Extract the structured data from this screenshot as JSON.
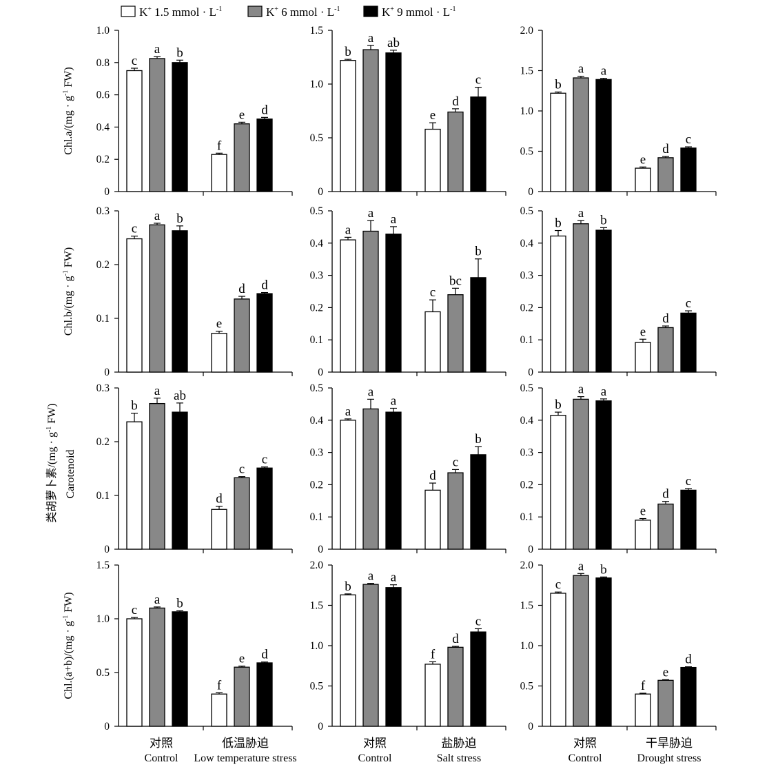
{
  "legend": {
    "entries": [
      {
        "prefix": "K",
        "sup": "+",
        "text": " 1.5 mmol · L",
        "sup2": "-1",
        "color": "#ffffff"
      },
      {
        "prefix": "K",
        "sup": "+",
        "text": " 6 mmol · L",
        "sup2": "-1",
        "color": "#888888"
      },
      {
        "prefix": "K",
        "sup": "+",
        "text": " 9 mmol · L",
        "sup2": "-1",
        "color": "#000000"
      }
    ]
  },
  "row_ylabels": [
    {
      "line1": "Chl.a/(mg · g",
      "sup": "-1",
      "line1_end": " FW)",
      "line2": ""
    },
    {
      "line1": "Chl.b/(mg · g",
      "sup": "-1",
      "line1_end": " FW)",
      "line2": ""
    },
    {
      "line1": "类胡萝卜素/(mg · g",
      "sup": "-1",
      "line1_end": " FW)",
      "line2": "Carotenoid"
    },
    {
      "line1": "Chl.(a+b)/(mg · g",
      "sup": "-1",
      "line1_end": " FW)",
      "line2": ""
    }
  ],
  "col_xlabels": [
    [
      {
        "cn": "对照",
        "en": "Control"
      },
      {
        "cn": "低温胁迫",
        "en": "Low temperature stress"
      }
    ],
    [
      {
        "cn": "对照",
        "en": "Control"
      },
      {
        "cn": "盐胁迫",
        "en": "Salt stress"
      }
    ],
    [
      {
        "cn": "对照",
        "en": "Control"
      },
      {
        "cn": "干旱胁迫",
        "en": "Drought stress"
      }
    ]
  ],
  "series_colors": [
    "#ffffff",
    "#888888",
    "#000000"
  ],
  "chart_data": [
    {
      "type": "bar",
      "row": 0,
      "col": 0,
      "ylim": [
        0,
        1.0
      ],
      "yticks": [
        "0",
        "0.2",
        "0.4",
        "0.6",
        "0.8",
        "1.0"
      ],
      "groups": [
        {
          "values": [
            0.75,
            0.825,
            0.8
          ],
          "errors": [
            0.015,
            0.012,
            0.015
          ],
          "letters": [
            "c",
            "a",
            "b"
          ]
        },
        {
          "values": [
            0.23,
            0.42,
            0.45
          ],
          "errors": [
            0.008,
            0.01,
            0.01
          ],
          "letters": [
            "f",
            "e",
            "d"
          ]
        }
      ]
    },
    {
      "type": "bar",
      "row": 0,
      "col": 1,
      "ylim": [
        0,
        1.5
      ],
      "yticks": [
        "0",
        "0.5",
        "1.0",
        "1.5"
      ],
      "groups": [
        {
          "values": [
            1.22,
            1.32,
            1.29
          ],
          "errors": [
            0.01,
            0.04,
            0.025
          ],
          "letters": [
            "b",
            "a",
            "ab"
          ]
        },
        {
          "values": [
            0.58,
            0.74,
            0.88
          ],
          "errors": [
            0.06,
            0.03,
            0.09
          ],
          "letters": [
            "e",
            "d",
            "c"
          ]
        }
      ]
    },
    {
      "type": "bar",
      "row": 0,
      "col": 2,
      "ylim": [
        0,
        2.0
      ],
      "yticks": [
        "0",
        "0.5",
        "1.0",
        "1.5",
        "2.0"
      ],
      "groups": [
        {
          "values": [
            1.22,
            1.41,
            1.39
          ],
          "errors": [
            0.015,
            0.02,
            0.015
          ],
          "letters": [
            "b",
            "a",
            "a"
          ]
        },
        {
          "values": [
            0.29,
            0.42,
            0.54
          ],
          "errors": [
            0.015,
            0.015,
            0.015
          ],
          "letters": [
            "e",
            "d",
            "c"
          ]
        }
      ]
    },
    {
      "type": "bar",
      "row": 1,
      "col": 0,
      "ylim": [
        0,
        0.3
      ],
      "yticks": [
        "0",
        "0.1",
        "0.2",
        "0.3"
      ],
      "groups": [
        {
          "values": [
            0.248,
            0.274,
            0.263
          ],
          "errors": [
            0.005,
            0.003,
            0.009
          ],
          "letters": [
            "c",
            "a",
            "b"
          ]
        },
        {
          "values": [
            0.072,
            0.136,
            0.146
          ],
          "errors": [
            0.004,
            0.005,
            0.002
          ],
          "letters": [
            "e",
            "d",
            "d"
          ]
        }
      ]
    },
    {
      "type": "bar",
      "row": 1,
      "col": 1,
      "ylim": [
        0,
        0.5
      ],
      "yticks": [
        "0",
        "0.1",
        "0.2",
        "0.3",
        "0.4",
        "0.5"
      ],
      "groups": [
        {
          "values": [
            0.41,
            0.437,
            0.428
          ],
          "errors": [
            0.008,
            0.033,
            0.023
          ],
          "letters": [
            "a",
            "a",
            "a"
          ]
        },
        {
          "values": [
            0.187,
            0.24,
            0.293
          ],
          "errors": [
            0.037,
            0.02,
            0.058
          ],
          "letters": [
            "c",
            "bc",
            "b"
          ]
        }
      ]
    },
    {
      "type": "bar",
      "row": 1,
      "col": 2,
      "ylim": [
        0,
        0.5
      ],
      "yticks": [
        "0",
        "0.1",
        "0.2",
        "0.3",
        "0.4",
        "0.5"
      ],
      "groups": [
        {
          "values": [
            0.422,
            0.46,
            0.44
          ],
          "errors": [
            0.017,
            0.01,
            0.008
          ],
          "letters": [
            "b",
            "a",
            "b"
          ]
        },
        {
          "values": [
            0.092,
            0.138,
            0.183
          ],
          "errors": [
            0.01,
            0.005,
            0.007
          ],
          "letters": [
            "e",
            "d",
            "c"
          ]
        }
      ]
    },
    {
      "type": "bar",
      "row": 2,
      "col": 0,
      "ylim": [
        0,
        0.3
      ],
      "yticks": [
        "0",
        "0.1",
        "0.2",
        "0.3"
      ],
      "groups": [
        {
          "values": [
            0.237,
            0.271,
            0.255
          ],
          "errors": [
            0.016,
            0.01,
            0.017
          ],
          "letters": [
            "b",
            "a",
            "ab"
          ]
        },
        {
          "values": [
            0.074,
            0.133,
            0.151
          ],
          "errors": [
            0.006,
            0.002,
            0.002
          ],
          "letters": [
            "d",
            "c",
            "c"
          ]
        }
      ]
    },
    {
      "type": "bar",
      "row": 2,
      "col": 1,
      "ylim": [
        0,
        0.5
      ],
      "yticks": [
        "0",
        "0.1",
        "0.2",
        "0.3",
        "0.4",
        "0.5"
      ],
      "groups": [
        {
          "values": [
            0.4,
            0.435,
            0.425
          ],
          "errors": [
            0.004,
            0.03,
            0.012
          ],
          "letters": [
            "a",
            "a",
            "a"
          ]
        },
        {
          "values": [
            0.183,
            0.237,
            0.293
          ],
          "errors": [
            0.022,
            0.01,
            0.025
          ],
          "letters": [
            "d",
            "c",
            "b"
          ]
        }
      ]
    },
    {
      "type": "bar",
      "row": 2,
      "col": 2,
      "ylim": [
        0,
        0.5
      ],
      "yticks": [
        "0",
        "0.1",
        "0.2",
        "0.3",
        "0.4",
        "0.5"
      ],
      "groups": [
        {
          "values": [
            0.415,
            0.465,
            0.46
          ],
          "errors": [
            0.01,
            0.008,
            0.006
          ],
          "letters": [
            "b",
            "a",
            "a"
          ]
        },
        {
          "values": [
            0.09,
            0.14,
            0.183
          ],
          "errors": [
            0.005,
            0.008,
            0.005
          ],
          "letters": [
            "e",
            "d",
            "c"
          ]
        }
      ]
    },
    {
      "type": "bar",
      "row": 3,
      "col": 0,
      "ylim": [
        0,
        1.5
      ],
      "yticks": [
        "0",
        "0.5",
        "1.0",
        "1.5"
      ],
      "groups": [
        {
          "values": [
            1.0,
            1.1,
            1.065
          ],
          "errors": [
            0.012,
            0.01,
            0.01
          ],
          "letters": [
            "c",
            "a",
            "b"
          ]
        },
        {
          "values": [
            0.3,
            0.55,
            0.59
          ],
          "errors": [
            0.012,
            0.01,
            0.008
          ],
          "letters": [
            "f",
            "e",
            "d"
          ]
        }
      ]
    },
    {
      "type": "bar",
      "row": 3,
      "col": 1,
      "ylim": [
        0,
        2.0
      ],
      "yticks": [
        "0",
        "0.5",
        "1.0",
        "1.5",
        "2.0"
      ],
      "groups": [
        {
          "values": [
            1.63,
            1.76,
            1.72
          ],
          "errors": [
            0.012,
            0.012,
            0.035
          ],
          "letters": [
            "b",
            "a",
            "a"
          ]
        },
        {
          "values": [
            0.77,
            0.98,
            1.17
          ],
          "errors": [
            0.03,
            0.012,
            0.04
          ],
          "letters": [
            "f",
            "d",
            "c"
          ]
        }
      ]
    },
    {
      "type": "bar",
      "row": 3,
      "col": 2,
      "ylim": [
        0,
        2.0
      ],
      "yticks": [
        "0",
        "0.5",
        "1.0",
        "1.5",
        "2.0"
      ],
      "groups": [
        {
          "values": [
            1.65,
            1.87,
            1.84
          ],
          "errors": [
            0.015,
            0.025,
            0.012
          ],
          "letters": [
            "c",
            "a",
            "b"
          ]
        },
        {
          "values": [
            0.4,
            0.57,
            0.73
          ],
          "errors": [
            0.01,
            0.008,
            0.008
          ],
          "letters": [
            "f",
            "e",
            "d"
          ]
        }
      ]
    }
  ]
}
